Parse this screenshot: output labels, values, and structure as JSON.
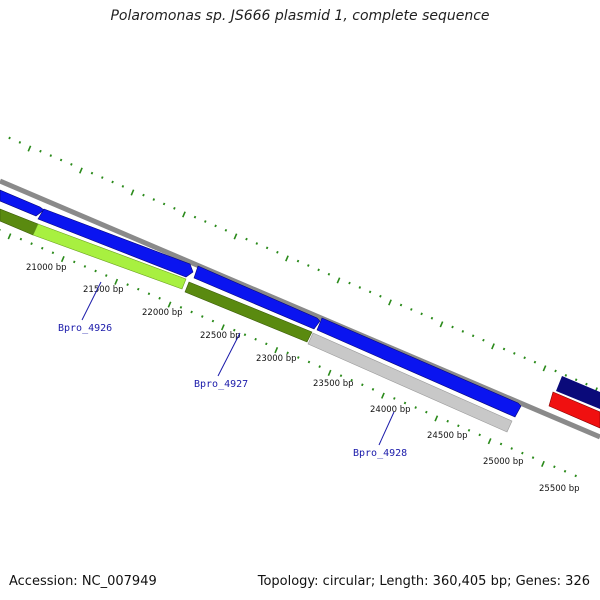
{
  "map": {
    "title": "Polaromonas sp. JS666 plasmid 1, complete sequence"
  },
  "footer": {
    "accession": "Accession: NC_007949",
    "topology": "Topology: circular; Length: 360,405 bp; Genes: 326"
  },
  "colors": {
    "backbone": "#8a8a8a",
    "forward_cds": "#0a14f0",
    "forward_cds_dark": "#0a0a7a",
    "reverse_red": "#f01010",
    "olive": "#5a8a10",
    "lime": "#a8f040",
    "gray_gene": "#c8c8c8",
    "tick": "#2a8a1a",
    "gene_label": "#1a1aaa",
    "ruler_text": "#111111"
  },
  "ruler": {
    "labels": [
      "21000 bp",
      "21500 bp",
      "22000 bp",
      "22500 bp",
      "23000 bp",
      "23500 bp",
      "24000 bp",
      "24500 bp",
      "25000 bp",
      "25500 bp"
    ]
  },
  "genes": [
    {
      "name": "Bpro_4926"
    },
    {
      "name": "Bpro_4927"
    },
    {
      "name": "Bpro_4928"
    }
  ]
}
